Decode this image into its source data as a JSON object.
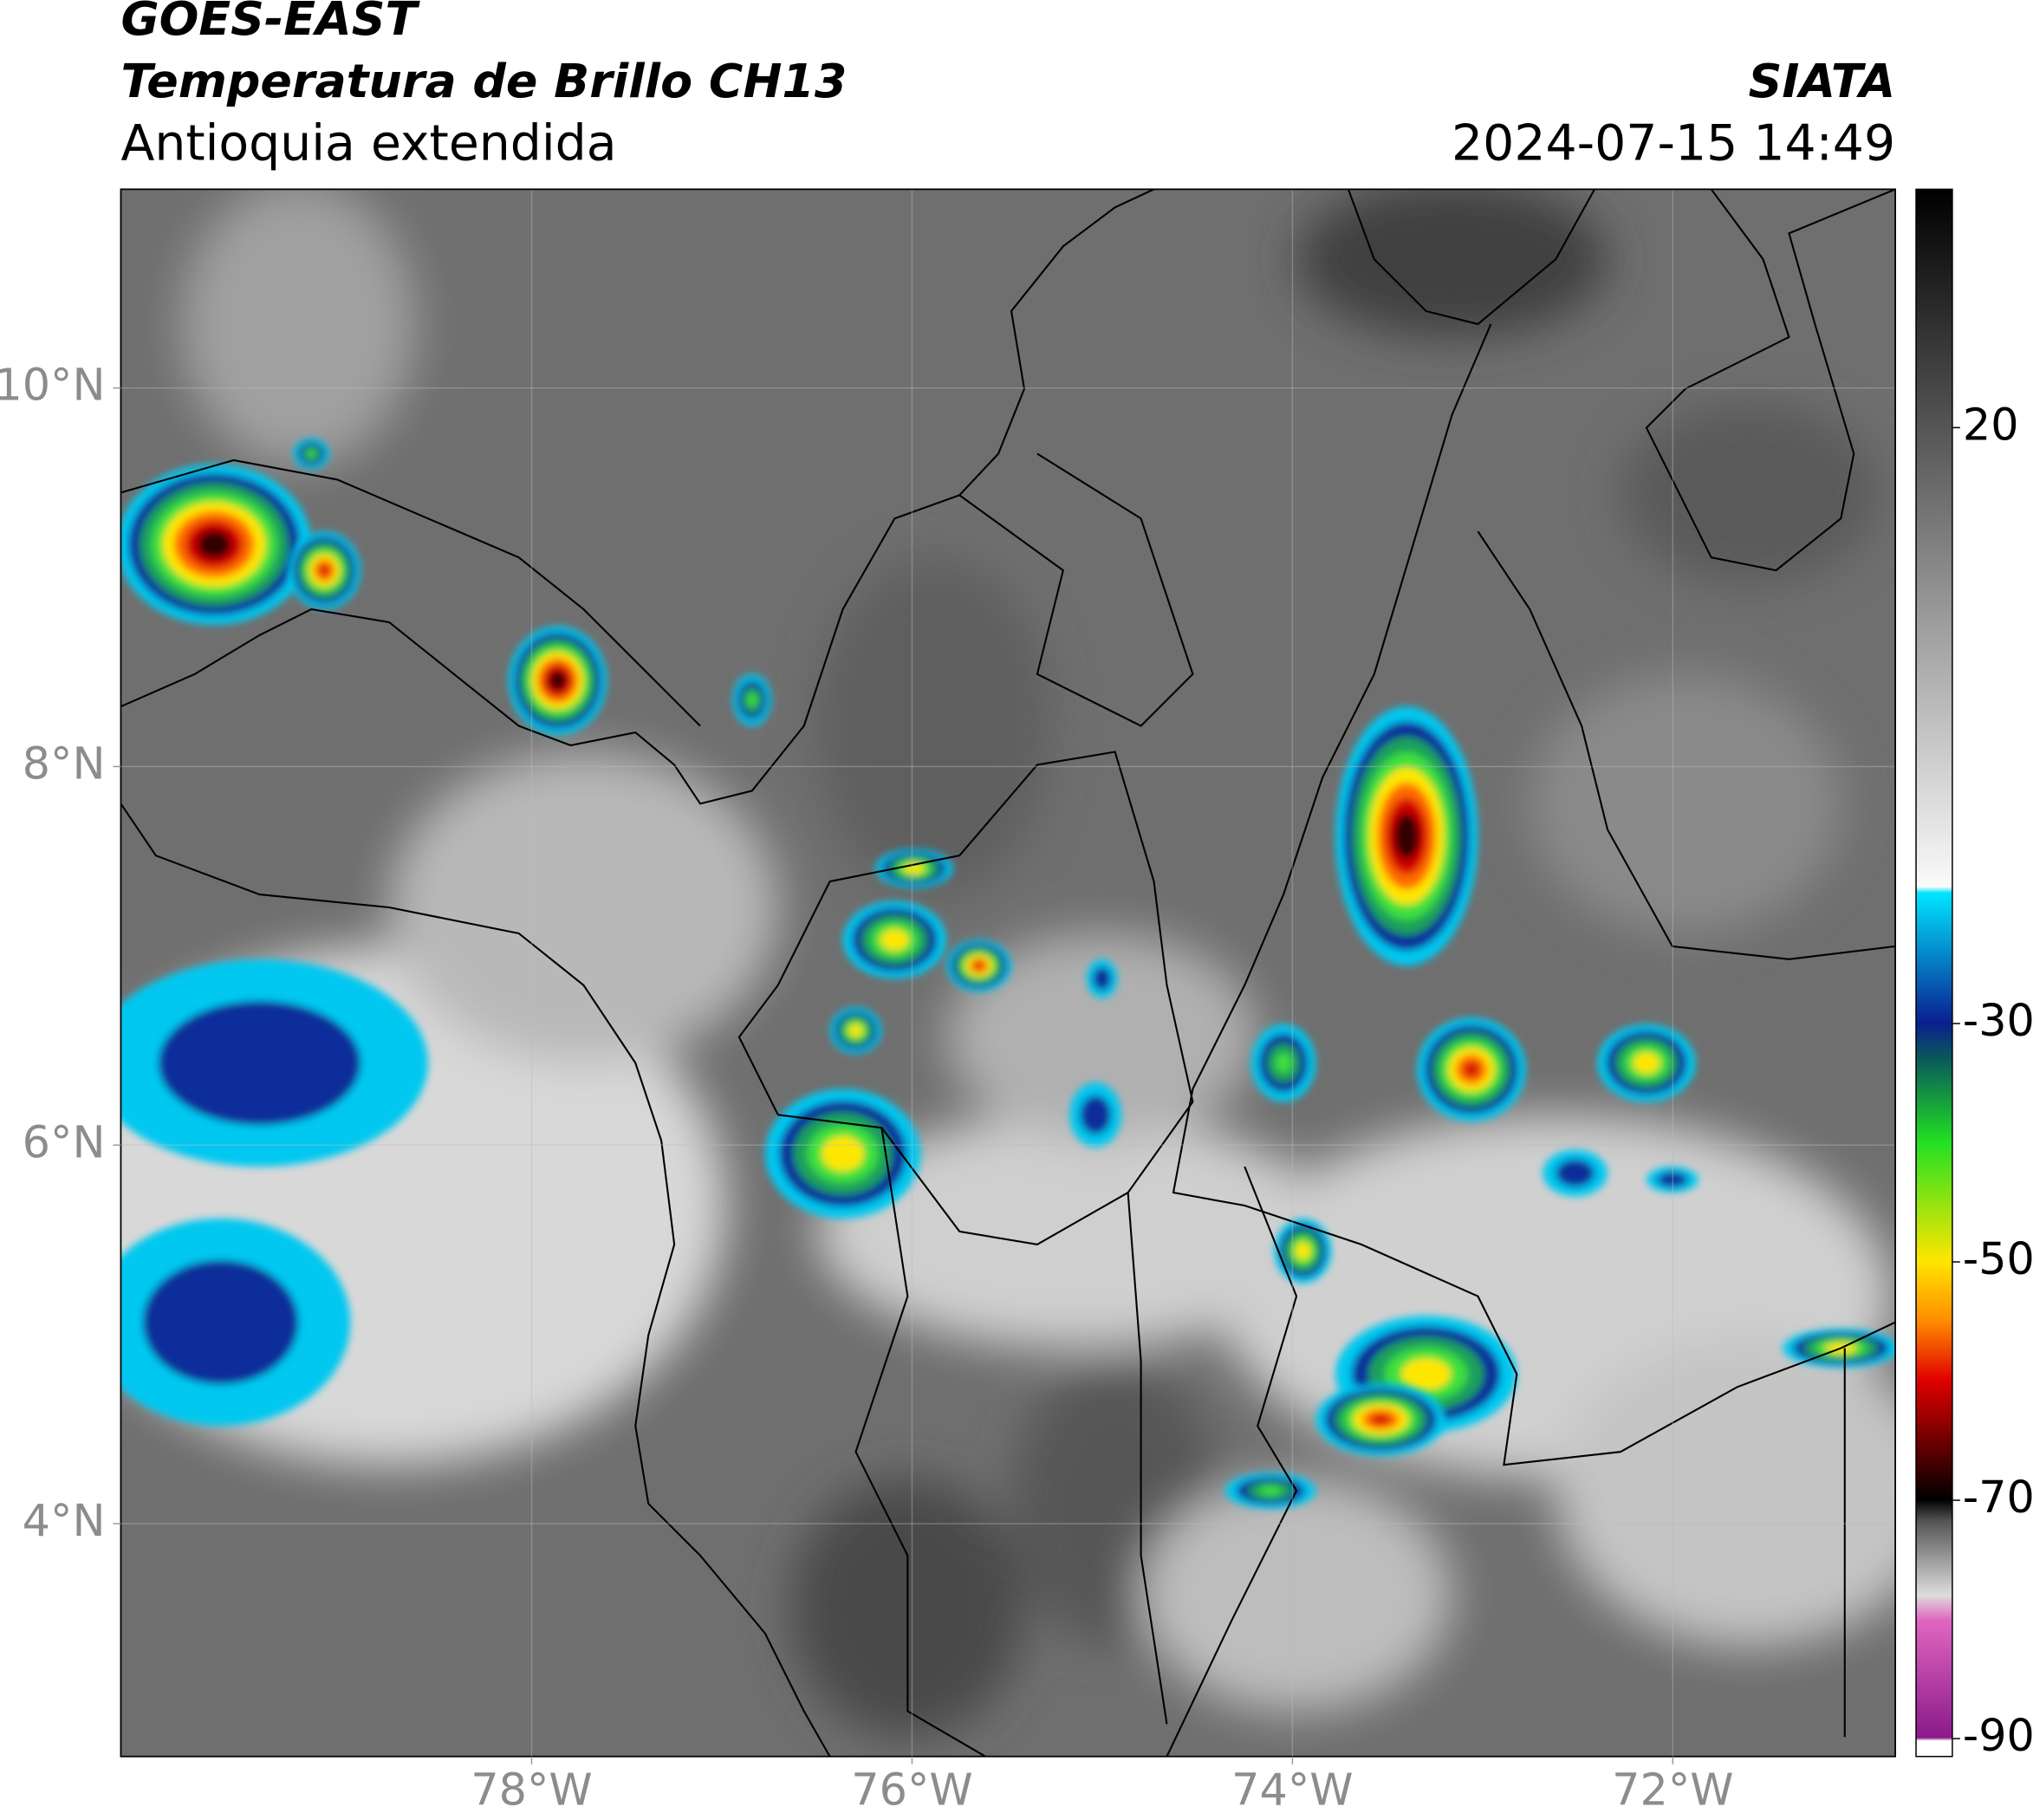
{
  "header": {
    "satellite": "GOES-EAST",
    "product": "Temperatura de Brillo CH13",
    "region": "Antioquia extendida",
    "source": "SIATA",
    "datetime": "2024-07-15 14:49"
  },
  "map": {
    "xlim": [
      -80.16,
      -70.83
    ],
    "ylim": [
      2.77,
      11.05
    ],
    "xticks": [
      {
        "value": -78,
        "label": "78°W"
      },
      {
        "value": -76,
        "label": "76°W"
      },
      {
        "value": -74,
        "label": "74°W"
      },
      {
        "value": -72,
        "label": "72°W"
      }
    ],
    "yticks": [
      {
        "value": 4,
        "label": "4°N"
      },
      {
        "value": 6,
        "label": "6°N"
      },
      {
        "value": 8,
        "label": "8°N"
      },
      {
        "value": 10,
        "label": "10°N"
      }
    ],
    "grid": true
  },
  "colorbar": {
    "lim": [
      -91.5,
      40
    ],
    "ticks": [
      -90,
      -70,
      -50,
      -30,
      20
    ]
  }
}
